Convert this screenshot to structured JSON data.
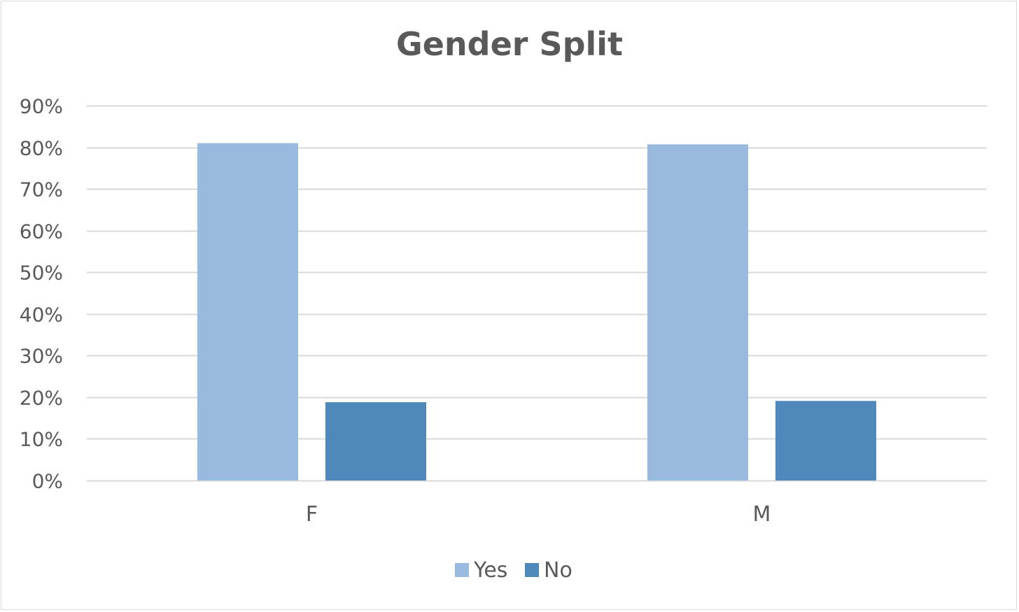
{
  "chart_data": {
    "type": "bar",
    "title": "Gender Split",
    "xlabel": "",
    "ylabel": "",
    "categories": [
      "F",
      "M"
    ],
    "series": [
      {
        "name": "Yes",
        "values": [
          81,
          80.7
        ],
        "color": "#9ab9df"
      },
      {
        "name": "No",
        "values": [
          18.8,
          19.1
        ],
        "color": "#4f89bc"
      }
    ],
    "ylim": [
      0,
      90
    ],
    "yticks": [
      0,
      10,
      20,
      30,
      40,
      50,
      60,
      70,
      80,
      90
    ],
    "ytick_labels": [
      "0%",
      "10%",
      "20%",
      "30%",
      "40%",
      "50%",
      "60%",
      "70%",
      "80%",
      "90%"
    ],
    "grid": true,
    "legend_position": "bottom",
    "gridline_color": "#d9d9d9",
    "text_color": "#595959"
  }
}
